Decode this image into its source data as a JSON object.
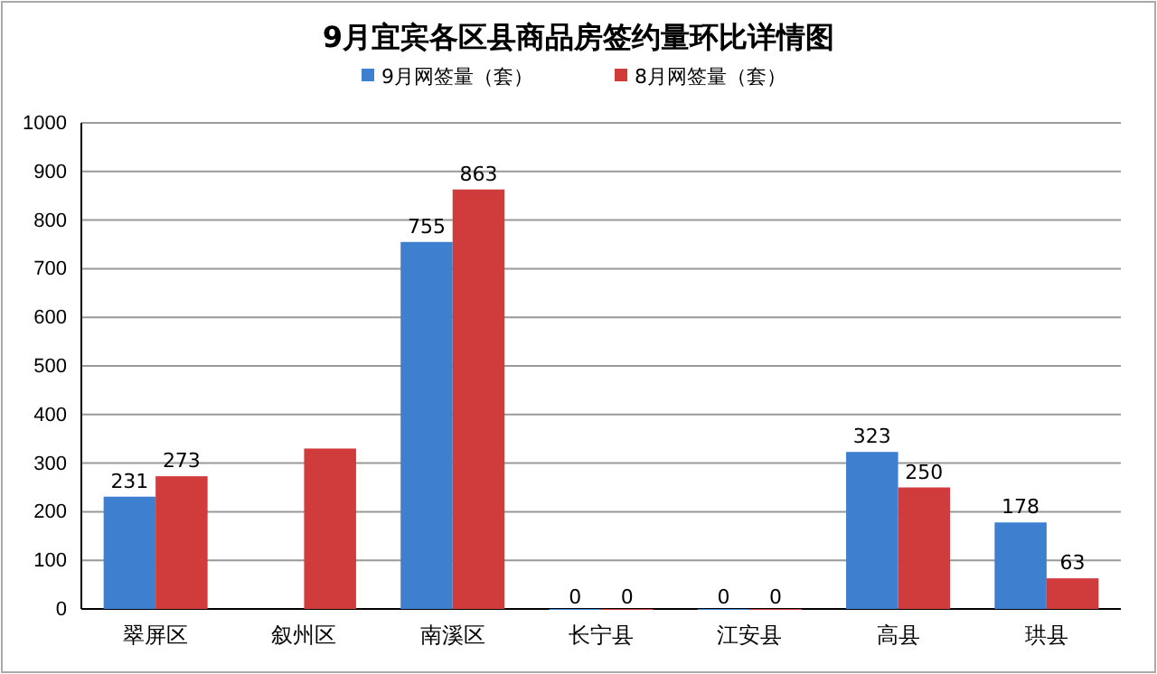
{
  "chart_data": {
    "type": "bar",
    "title": "9月宜宾各区县商品房签约量环比详情图",
    "categories": [
      "翠屏区",
      "叙州区",
      "南溪区",
      "长宁县",
      "江安县",
      "高县",
      "珙县"
    ],
    "series": [
      {
        "name": "9月网签量（套）",
        "color": "#3f7fd0",
        "values": [
          231,
          null,
          755,
          0,
          0,
          323,
          178
        ],
        "value_labels": [
          "231",
          null,
          "755",
          "0",
          "0",
          "323",
          "178"
        ]
      },
      {
        "name": "8月网签量（套）",
        "color": "#d03c3c",
        "values": [
          273,
          330,
          863,
          0,
          0,
          250,
          63
        ],
        "value_labels": [
          "273",
          null,
          "863",
          "0",
          "0",
          "250",
          "63"
        ]
      }
    ],
    "ylim": [
      0,
      1000
    ],
    "yticks": [
      0,
      100,
      200,
      300,
      400,
      500,
      600,
      700,
      800,
      900,
      1000
    ],
    "grid": "y",
    "legend": "top"
  }
}
